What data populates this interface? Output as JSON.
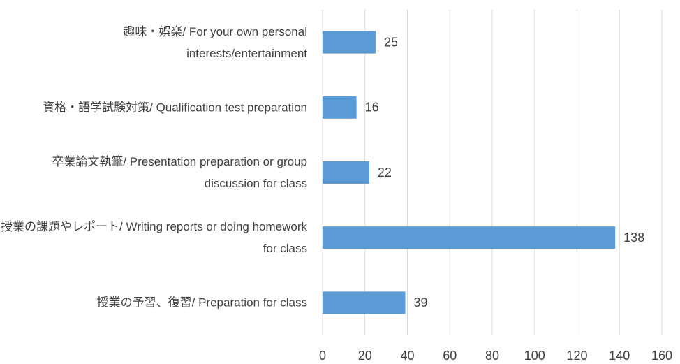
{
  "chart_data": {
    "type": "barh",
    "categories": [
      "趣味・娯楽/ For your own personal interests/entertainment",
      "資格・語学試験対策/ Qualification test preparation",
      "卒業論文執筆/ Presentation preparation or group discussion for class",
      "授業の課題やレポート/ Writing reports or doing homework for class",
      "授業の予習、復習/ Preparation for class"
    ],
    "values": [
      25,
      16,
      22,
      138,
      39
    ],
    "color": "#5b9bd5",
    "xlim": [
      0,
      160
    ],
    "xticks": [
      0,
      20,
      40,
      60,
      80,
      100,
      120,
      140,
      160
    ],
    "grid": true
  }
}
